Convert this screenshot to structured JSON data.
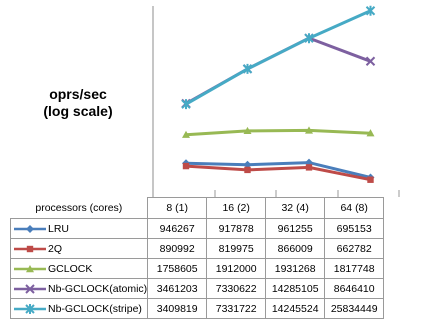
{
  "chart_data": {
    "type": "line",
    "categories": [
      "8 (1)",
      "16 (2)",
      "32 (4)",
      "64 (8)"
    ],
    "xlabel": "processors (cores)",
    "ylabel": "oprs/sec\n(log scale)",
    "yscale": "log",
    "grid": true,
    "legend": "data-table",
    "series": [
      {
        "name": "LRU",
        "color": "#4a7ebb",
        "marker": "diamond",
        "values": [
          946267,
          917878,
          961255,
          695153
        ]
      },
      {
        "name": "2Q",
        "color": "#be4b48",
        "marker": "square",
        "values": [
          890992,
          819975,
          866009,
          662782
        ]
      },
      {
        "name": "GCLOCK",
        "color": "#98b954",
        "marker": "triangle",
        "values": [
          1758605,
          1912000,
          1931268,
          1817748
        ]
      },
      {
        "name": "Nb-GCLOCK(atomic)",
        "color": "#7d60a0",
        "marker": "x",
        "values": [
          3461203,
          7330622,
          14285105,
          8646410
        ]
      },
      {
        "name": "Nb-GCLOCK(stripe)",
        "color": "#46aac5",
        "marker": "star",
        "values": [
          3409819,
          7331722,
          14245524,
          25834449
        ]
      }
    ],
    "table_values": [
      [
        "946267",
        "917878",
        "961255",
        "695153"
      ],
      [
        "890992",
        "819975",
        "866009",
        "662782"
      ],
      [
        "1758605",
        "1912000",
        "1931268",
        "1817748"
      ],
      [
        "3461203",
        "7330622",
        "14285105",
        "8646410"
      ],
      [
        "3409819",
        "7331722",
        "14245524",
        "25834449"
      ]
    ]
  }
}
